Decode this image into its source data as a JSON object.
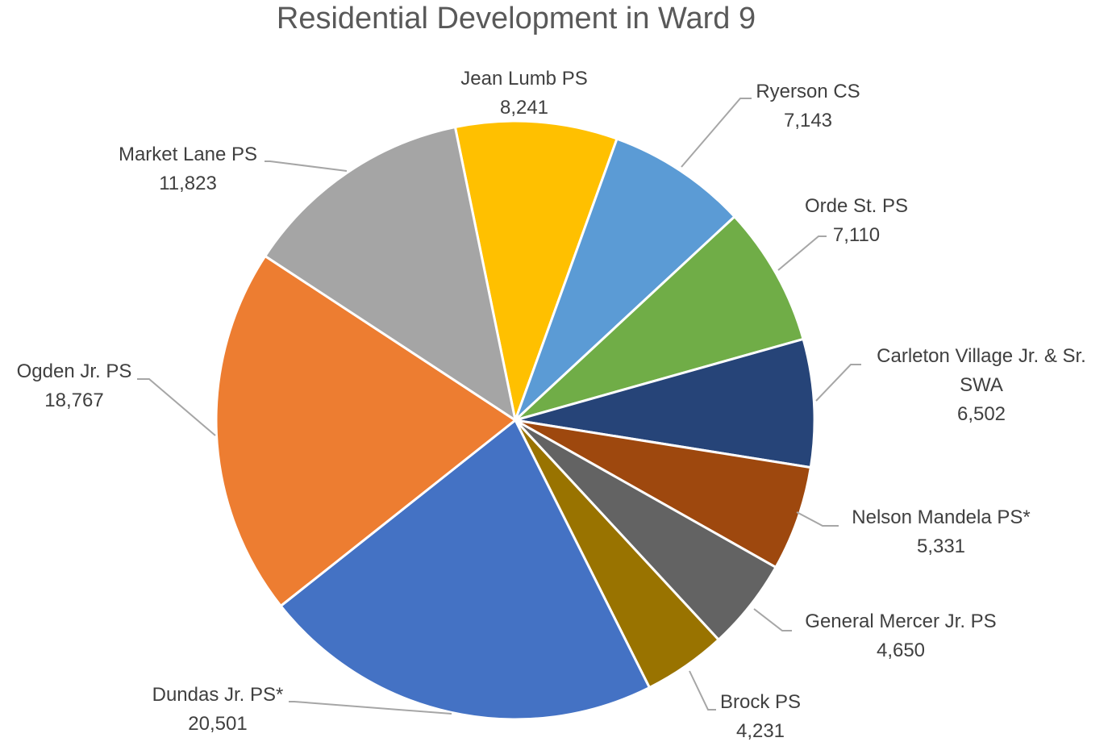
{
  "chart_data": {
    "type": "pie",
    "title": "Residential Development in Ward 9",
    "categories": [
      "Jean Lumb PS",
      "Ryerson CS",
      "Orde St. PS",
      "Carleton Village Jr. & Sr. SWA",
      "Nelson Mandela PS*",
      "General Mercer Jr. PS",
      "Brock PS",
      "Dundas Jr. PS*",
      "Ogden Jr. PS",
      "Market Lane PS"
    ],
    "values": [
      8241,
      7143,
      7110,
      6502,
      5331,
      4650,
      4231,
      20501,
      18767,
      11823
    ],
    "value_labels": [
      "8,241",
      "7,143",
      "7,110",
      "6,502",
      "5,331",
      "4,650",
      "4,231",
      "20,501",
      "18,767",
      "11,823"
    ],
    "colors": [
      "#ffc000",
      "#5b9bd5",
      "#70ad47",
      "#264478",
      "#9e480e",
      "#636363",
      "#997300",
      "#4472c4",
      "#ed7d31",
      "#a5a5a5"
    ]
  }
}
